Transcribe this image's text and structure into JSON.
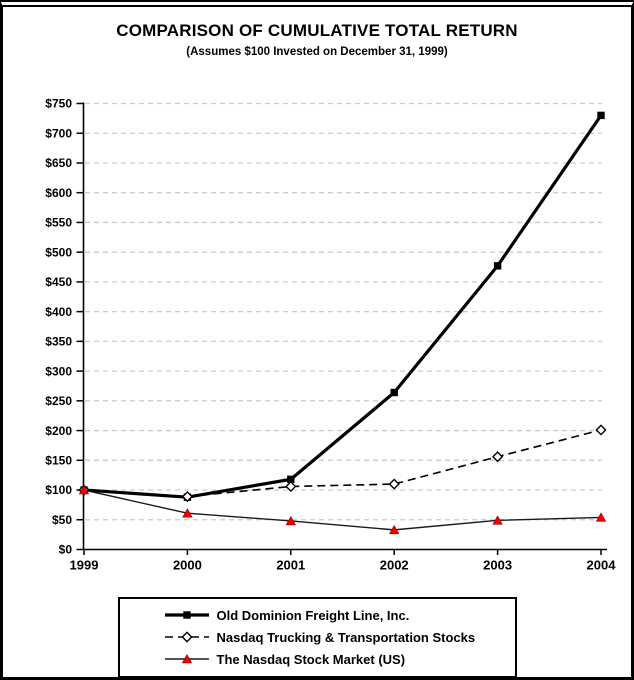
{
  "chart_data": {
    "type": "line",
    "title": "COMPARISON OF CUMULATIVE TOTAL RETURN",
    "subtitle": "(Assumes $100 Invested on December 31, 1999)",
    "x_categories": [
      "1999",
      "2000",
      "2001",
      "2002",
      "2003",
      "2004"
    ],
    "ylim": [
      0,
      750
    ],
    "ytick_step": 50,
    "ytick_prefix": "$",
    "grid": "horizontal-dashed",
    "gridline_color": "#cccccc",
    "axis_color": "#000000",
    "legend_position": "bottom-center",
    "series": [
      {
        "name": "Old Dominion Freight Line, Inc.",
        "values": [
          100,
          88,
          118,
          264,
          477,
          730
        ],
        "color": "#000000",
        "marker": "filled-square",
        "marker_color": "#000000",
        "line_style": "solid-thick"
      },
      {
        "name": "Nasdaq Trucking & Transportation Stocks",
        "values": [
          100,
          89,
          106,
          110,
          156,
          201
        ],
        "color": "#000000",
        "marker": "open-diamond",
        "marker_color": "#ffffff",
        "line_style": "dashed"
      },
      {
        "name": "The Nasdaq Stock Market (US)",
        "values": [
          100,
          61,
          48,
          33,
          49,
          54
        ],
        "color": "#1a1a1a",
        "marker": "filled-triangle",
        "marker_color": "#ee0000",
        "line_style": "solid-thin"
      }
    ]
  }
}
